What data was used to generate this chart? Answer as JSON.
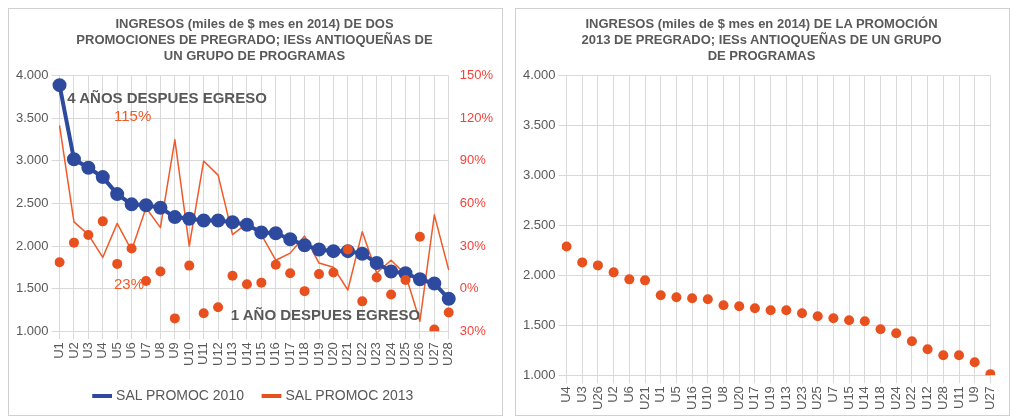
{
  "chart_data": [
    {
      "type": "line",
      "title": "INGRESOS (miles de $ mes en 2014) DE DOS PROMOCIONES DE PREGRADO; IESs ANTIOQUEÑAS DE UN GRUPO DE PROGRAMAS",
      "categories": [
        "U1",
        "U2",
        "U3",
        "U4",
        "U5",
        "U6",
        "U7",
        "U8",
        "U9",
        "U10",
        "U11",
        "U12",
        "U13",
        "U14",
        "U15",
        "U16",
        "U17",
        "U18",
        "U19",
        "U20",
        "U21",
        "U22",
        "U23",
        "U24",
        "U25",
        "U26",
        "U27",
        "U28"
      ],
      "series": [
        {
          "name": "SAL PROMOC 2010",
          "type": "line",
          "color": "#2e4a9e",
          "marker": "circle",
          "values": [
            3890,
            3020,
            2920,
            2810,
            2610,
            2490,
            2480,
            2450,
            2340,
            2320,
            2300,
            2300,
            2280,
            2250,
            2160,
            2150,
            2080,
            2010,
            1960,
            1940,
            1940,
            1910,
            1800,
            1700,
            1680,
            1610,
            1560,
            1380
          ]
        },
        {
          "name": "SAL PROMOC 2013",
          "type": "scatter",
          "color": "#e8501e",
          "marker": "circle",
          "values": [
            1810,
            2040,
            2130,
            2290,
            1790,
            1970,
            1590,
            1700,
            1150,
            1770,
            1210,
            1280,
            1650,
            1550,
            1570,
            1780,
            1680,
            1470,
            1670,
            1690,
            1960,
            1350,
            1630,
            1430,
            1600,
            2110,
            1020,
            1220
          ]
        },
        {
          "type": "line",
          "axis": "y2",
          "color": "#f05a28",
          "marker": "none",
          "values": [
            115,
            47,
            38,
            22,
            46,
            27,
            57,
            43,
            105,
            30,
            90,
            80,
            38,
            46,
            38,
            20,
            25,
            37,
            18,
            15,
            -1,
            40,
            11,
            20,
            10,
            -23,
            52,
            13
          ]
        }
      ],
      "ylim": [
        1000,
        4000
      ],
      "yticks": [
        {
          "value": 1000,
          "label": "1.000"
        },
        {
          "value": 1500,
          "label": "1.500"
        },
        {
          "value": 2000,
          "label": "2.000"
        },
        {
          "value": 2500,
          "label": "2.500"
        },
        {
          "value": 3000,
          "label": "3.000"
        },
        {
          "value": 3500,
          "label": "3.500"
        },
        {
          "value": 4000,
          "label": "4.000"
        }
      ],
      "y2lim": [
        -30,
        150
      ],
      "y2ticks": [
        {
          "value": -30,
          "label": "30%"
        },
        {
          "value": 0,
          "label": "0%"
        },
        {
          "value": 30,
          "label": "30%"
        },
        {
          "value": 60,
          "label": "60%"
        },
        {
          "value": 90,
          "label": "90%"
        },
        {
          "value": 120,
          "label": "120%"
        },
        {
          "value": 150,
          "label": "150%"
        }
      ],
      "annotations": [
        "4 AÑOS DESPUES EGRESO",
        "1 AÑO DESPUES EGRESO",
        "115%",
        "23%"
      ],
      "grid": true,
      "legend": "bottom"
    },
    {
      "type": "scatter",
      "title": "INGRESOS (miles de $ mes en 2014) DE LA PROMOCIÓN 2013 DE PREGRADO; IESs ANTIOQUEÑAS DE UN GRUPO DE PROGRAMAS",
      "categories": [
        "U4",
        "U3",
        "U26",
        "U2",
        "U6",
        "U21",
        "U1",
        "U5",
        "U16",
        "U10",
        "U8",
        "U20",
        "U17",
        "U19",
        "U13",
        "U23",
        "U25",
        "U7",
        "U15",
        "U14",
        "U18",
        "U24",
        "U22",
        "U12",
        "U28",
        "U11",
        "U9",
        "U27"
      ],
      "values": [
        2290,
        2130,
        2100,
        2030,
        1960,
        1950,
        1800,
        1780,
        1770,
        1760,
        1700,
        1690,
        1670,
        1650,
        1650,
        1620,
        1590,
        1570,
        1550,
        1540,
        1460,
        1420,
        1340,
        1260,
        1200,
        1200,
        1130,
        1010
      ],
      "color": "#e8501e",
      "marker": "circle",
      "ylim": [
        1000,
        4000
      ],
      "yticks": [
        {
          "value": 1000,
          "label": "1.000"
        },
        {
          "value": 1500,
          "label": "1.500"
        },
        {
          "value": 2000,
          "label": "2.000"
        },
        {
          "value": 2500,
          "label": "2.500"
        },
        {
          "value": 3000,
          "label": "3.000"
        },
        {
          "value": 3500,
          "label": "3.500"
        },
        {
          "value": 4000,
          "label": "4.000"
        }
      ],
      "grid": true
    }
  ]
}
